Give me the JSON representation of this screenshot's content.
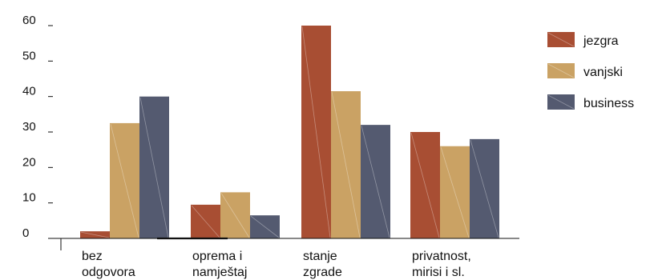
{
  "chart_data": {
    "type": "bar",
    "title": "",
    "xlabel": "",
    "ylabel": "",
    "ylim": [
      0,
      60
    ],
    "yticks": [
      0,
      10,
      20,
      30,
      40,
      50,
      60
    ],
    "grid": false,
    "legend_position": "right",
    "categories": [
      [
        "bez",
        "odgovora"
      ],
      [
        "oprema i",
        "namještaj"
      ],
      [
        "stanje",
        "zgrade"
      ],
      [
        "privatnost,",
        "mirisi i sl."
      ]
    ],
    "series": [
      {
        "name": "jezgra",
        "color": "#a84e33",
        "values": [
          2,
          9.5,
          60,
          30
        ]
      },
      {
        "name": "vanjski",
        "color": "#caa264",
        "values": [
          32.5,
          13,
          41.5,
          26
        ]
      },
      {
        "name": "business",
        "color": "#545a70",
        "values": [
          40,
          6.5,
          32,
          28
        ]
      }
    ]
  }
}
